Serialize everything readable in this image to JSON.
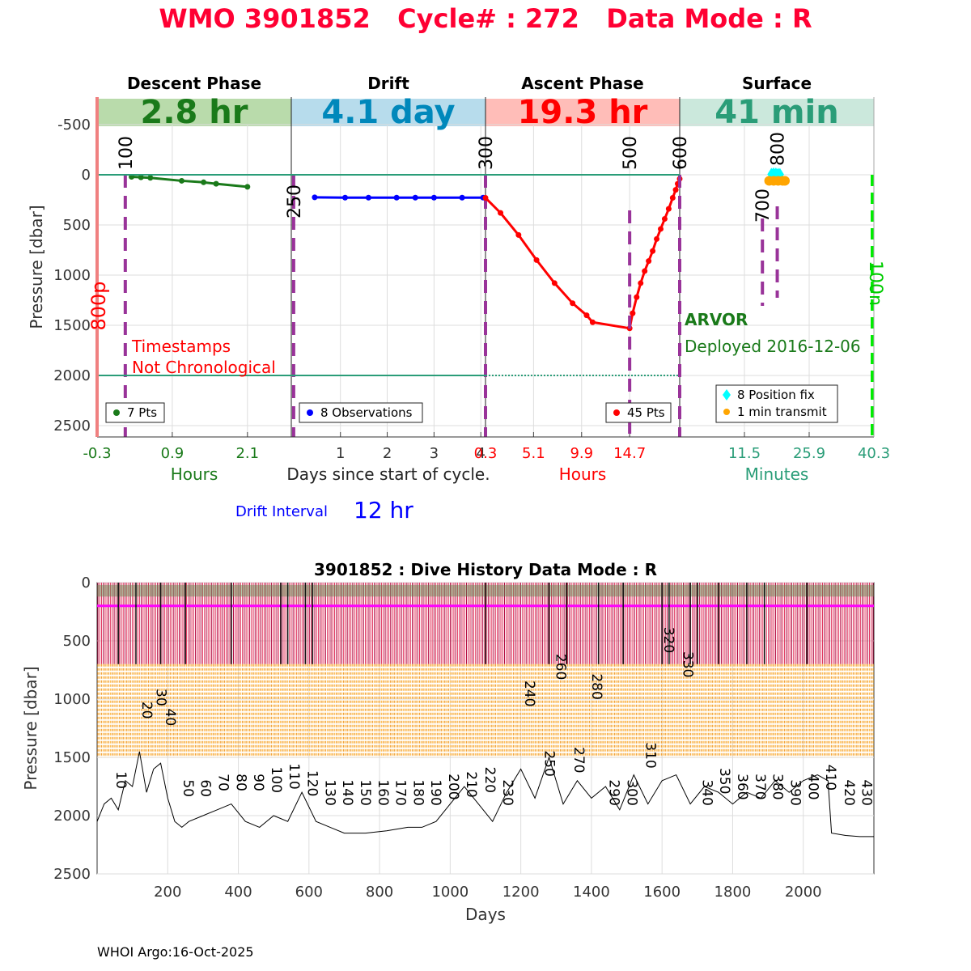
{
  "header": {
    "title": "WMO 3901852   Cycle# : 272   Data Mode : R",
    "footer": "WHOI Argo:16-Oct-2025"
  },
  "colors": {
    "title_red": "#ff0033",
    "descent_green": "#1a7a1a",
    "drift_blue": "#0000ff",
    "drift_cyan": "#0088bb",
    "ascent_red": "#ff0000",
    "surface_teal": "#2a9d78",
    "purple": "#993399",
    "magenta": "#ff00ff",
    "orange": "#ffa500",
    "cyan": "#00ffff",
    "lime": "#00ee00",
    "salmon": "#f08080",
    "crimson": "#c8102e"
  },
  "chart_data": [
    {
      "type": "line",
      "id": "cycle",
      "title": "",
      "ylabel": "Pressure [dbar]",
      "ylim": [
        2600,
        -750
      ],
      "yticks": [
        -500,
        0,
        500,
        1000,
        1500,
        2000,
        2500
      ],
      "reference_lines": [
        0,
        2000
      ],
      "left_vertical_label": "800p",
      "right_vertical_label": "100n",
      "annotation": [
        "Timestamps",
        "Not Chronological"
      ],
      "float_type": "ARVOR",
      "deployed": "Deployed 2016-12-06",
      "drift_interval": {
        "label": "Drift Interval",
        "value": "12 hr"
      },
      "panels": [
        {
          "name": "descent",
          "phase": "Descent Phase",
          "duration": "2.8 hr",
          "xlabel": "Hours",
          "xlim": [
            -0.3,
            2.8
          ],
          "ticks": [
            -0.3,
            0.9,
            2.1
          ],
          "tick_labels": [
            "-0.3",
            "0.9",
            "2.1"
          ],
          "series": [
            {
              "name": "7 Pts",
              "color": "#1a7a1a",
              "x": [
                0.25,
                0.4,
                0.55,
                1.05,
                1.4,
                1.6,
                2.1
              ],
              "y": [
                20,
                25,
                30,
                60,
                75,
                90,
                120
              ]
            }
          ],
          "legend": "7 Pts",
          "markers": [
            {
              "label": "100",
              "x": 0.15
            }
          ]
        },
        {
          "name": "drift",
          "phase": "Drift",
          "duration": "4.1 day",
          "xlabel": "Days since start of cycle.",
          "xlim": [
            -0.05,
            4.1
          ],
          "ticks": [
            1,
            2,
            3,
            4
          ],
          "tick_labels": [
            "1",
            "2",
            "3",
            "4"
          ],
          "series": [
            {
              "name": "8 Observations",
              "color": "#0000ff",
              "x": [
                0.45,
                1.1,
                1.6,
                2.2,
                2.6,
                3.0,
                3.6,
                4.05
              ],
              "y": [
                225,
                228,
                228,
                228,
                228,
                228,
                228,
                228
              ]
            }
          ],
          "legend": "8 Observations",
          "markers": [
            {
              "label": "250",
              "x": 0.0
            },
            {
              "label": "300",
              "x": 4.1
            }
          ]
        },
        {
          "name": "ascent",
          "phase": "Ascent Phase",
          "duration": "19.3 hr",
          "xlabel": "Hours",
          "xlim": [
            0.3,
            19.7
          ],
          "ticks": [
            0.3,
            5.1,
            9.9,
            14.7
          ],
          "tick_labels": [
            "0.3",
            "5.1",
            "9.9",
            "14.7"
          ],
          "series": [
            {
              "name": "45 Pts",
              "color": "#ff0000",
              "x": [
                0.3,
                1.8,
                3.6,
                5.4,
                7.2,
                9.0,
                10.4,
                11.0,
                14.7,
                15.0,
                15.4,
                15.8,
                16.2,
                16.6,
                17.0,
                17.4,
                17.8,
                18.2,
                18.6,
                19.0,
                19.3,
                19.5,
                19.7
              ],
              "y": [
                230,
                380,
                600,
                850,
                1080,
                1280,
                1400,
                1470,
                1530,
                1380,
                1220,
                1080,
                960,
                860,
                760,
                640,
                540,
                440,
                340,
                230,
                150,
                90,
                40
              ]
            }
          ],
          "legend": "45 Pts",
          "markers": [
            {
              "label": "500",
              "x": 14.7
            },
            {
              "label": "600",
              "x": 19.7
            }
          ]
        },
        {
          "name": "surface",
          "phase": "Surface",
          "duration": "41 min",
          "xlabel": "Minutes",
          "xlim": [
            -2.9,
            40.3
          ],
          "ticks": [
            11.5,
            25.9,
            40.3
          ],
          "tick_labels": [
            "11.5",
            "25.9",
            "40.3"
          ],
          "series": [
            {
              "name": "8 Position fix",
              "color": "#00ffff",
              "x": [
                17.5,
                18.0,
                18.5,
                19.0,
                19.4,
                18.2,
                18.8,
                17.8
              ],
              "y": [
                -5,
                -10,
                -8,
                -5,
                -3,
                10,
                5,
                0
              ]
            },
            {
              "name": "1 min transmit",
              "color": "#ffa500",
              "x": [
                17.0,
                18.0,
                19.0,
                20.0,
                20.5
              ],
              "y": [
                60,
                60,
                60,
                60,
                60
              ]
            }
          ],
          "legend": [
            "8 Position fix",
            "1 min transmit"
          ],
          "markers": [
            {
              "label": "700",
              "x": 15.5
            },
            {
              "label": "800",
              "x": 18.8
            }
          ]
        }
      ]
    },
    {
      "type": "line",
      "id": "history",
      "title": "3901852 : Dive History      Data Mode : R",
      "xlabel": "Days",
      "ylabel": "Pressure [dbar]",
      "xlim": [
        0,
        2200
      ],
      "ylim": [
        2500,
        0
      ],
      "xticks": [
        200,
        400,
        600,
        800,
        1000,
        1200,
        1400,
        1600,
        1800,
        2000
      ],
      "yticks": [
        0,
        500,
        1000,
        1500,
        2000,
        2500
      ],
      "parking_pressure": 200,
      "profile_band": [
        0,
        700
      ],
      "orange_band": [
        700,
        1500
      ],
      "max_pressure_series": {
        "x": [
          0,
          20,
          40,
          60,
          80,
          100,
          120,
          140,
          160,
          180,
          200,
          220,
          240,
          260,
          300,
          340,
          380,
          420,
          460,
          500,
          540,
          580,
          620,
          660,
          700,
          760,
          820,
          880,
          920,
          960,
          1000,
          1040,
          1080,
          1120,
          1160,
          1200,
          1240,
          1280,
          1320,
          1360,
          1400,
          1440,
          1480,
          1520,
          1560,
          1600,
          1640,
          1680,
          1720,
          1760,
          1800,
          1840,
          1880,
          1920,
          1960,
          2000,
          2040,
          2070,
          2080,
          2120,
          2160,
          2200
        ],
        "y": [
          2050,
          1900,
          1850,
          1950,
          1700,
          1750,
          1450,
          1800,
          1600,
          1550,
          1850,
          2050,
          2100,
          2050,
          2000,
          1950,
          1900,
          2050,
          2100,
          2000,
          2050,
          1800,
          2050,
          2100,
          2150,
          2150,
          2130,
          2100,
          2100,
          2050,
          1900,
          1750,
          1900,
          2050,
          1800,
          1600,
          1850,
          1500,
          1900,
          1700,
          1850,
          1750,
          1950,
          1650,
          1900,
          1700,
          1650,
          1900,
          1750,
          1800,
          1900,
          1800,
          1850,
          1700,
          1800,
          1700,
          1650,
          1700,
          2150,
          2170,
          2180,
          2180
        ]
      },
      "cycle_labels": [
        {
          "label": "10",
          "x": 55,
          "y": 1620
        },
        {
          "label": "20",
          "x": 128,
          "y": 1020
        },
        {
          "label": "30",
          "x": 168,
          "y": 910
        },
        {
          "label": "40",
          "x": 195,
          "y": 1080
        },
        {
          "label": "50",
          "x": 245,
          "y": 1690
        },
        {
          "label": "60",
          "x": 295,
          "y": 1690
        },
        {
          "label": "70",
          "x": 345,
          "y": 1640
        },
        {
          "label": "80",
          "x": 395,
          "y": 1640
        },
        {
          "label": "90",
          "x": 445,
          "y": 1640
        },
        {
          "label": "100",
          "x": 495,
          "y": 1580
        },
        {
          "label": "110",
          "x": 545,
          "y": 1550
        },
        {
          "label": "120",
          "x": 597,
          "y": 1610
        },
        {
          "label": "130",
          "x": 647,
          "y": 1690
        },
        {
          "label": "140",
          "x": 697,
          "y": 1690
        },
        {
          "label": "150",
          "x": 747,
          "y": 1690
        },
        {
          "label": "160",
          "x": 797,
          "y": 1690
        },
        {
          "label": "170",
          "x": 847,
          "y": 1690
        },
        {
          "label": "180",
          "x": 897,
          "y": 1690
        },
        {
          "label": "190",
          "x": 947,
          "y": 1690
        },
        {
          "label": "200",
          "x": 997,
          "y": 1640
        },
        {
          "label": "210",
          "x": 1047,
          "y": 1620
        },
        {
          "label": "220",
          "x": 1100,
          "y": 1580
        },
        {
          "label": "230",
          "x": 1150,
          "y": 1690
        },
        {
          "label": "240",
          "x": 1212,
          "y": 840
        },
        {
          "label": "250",
          "x": 1268,
          "y": 1440
        },
        {
          "label": "260",
          "x": 1300,
          "y": 610
        },
        {
          "label": "270",
          "x": 1352,
          "y": 1410
        },
        {
          "label": "280",
          "x": 1402,
          "y": 780
        },
        {
          "label": "290",
          "x": 1452,
          "y": 1690
        },
        {
          "label": "300",
          "x": 1502,
          "y": 1690
        },
        {
          "label": "310",
          "x": 1555,
          "y": 1370
        },
        {
          "label": "320",
          "x": 1607,
          "y": 380
        },
        {
          "label": "330",
          "x": 1660,
          "y": 590
        },
        {
          "label": "340",
          "x": 1715,
          "y": 1690
        },
        {
          "label": "350",
          "x": 1765,
          "y": 1590
        },
        {
          "label": "360",
          "x": 1815,
          "y": 1640
        },
        {
          "label": "370",
          "x": 1865,
          "y": 1640
        },
        {
          "label": "380",
          "x": 1915,
          "y": 1640
        },
        {
          "label": "390",
          "x": 1965,
          "y": 1690
        },
        {
          "label": "400",
          "x": 2015,
          "y": 1640
        },
        {
          "label": "410",
          "x": 2065,
          "y": 1560
        },
        {
          "label": "420",
          "x": 2117,
          "y": 1690
        },
        {
          "label": "430",
          "x": 2167,
          "y": 1690
        }
      ]
    }
  ]
}
